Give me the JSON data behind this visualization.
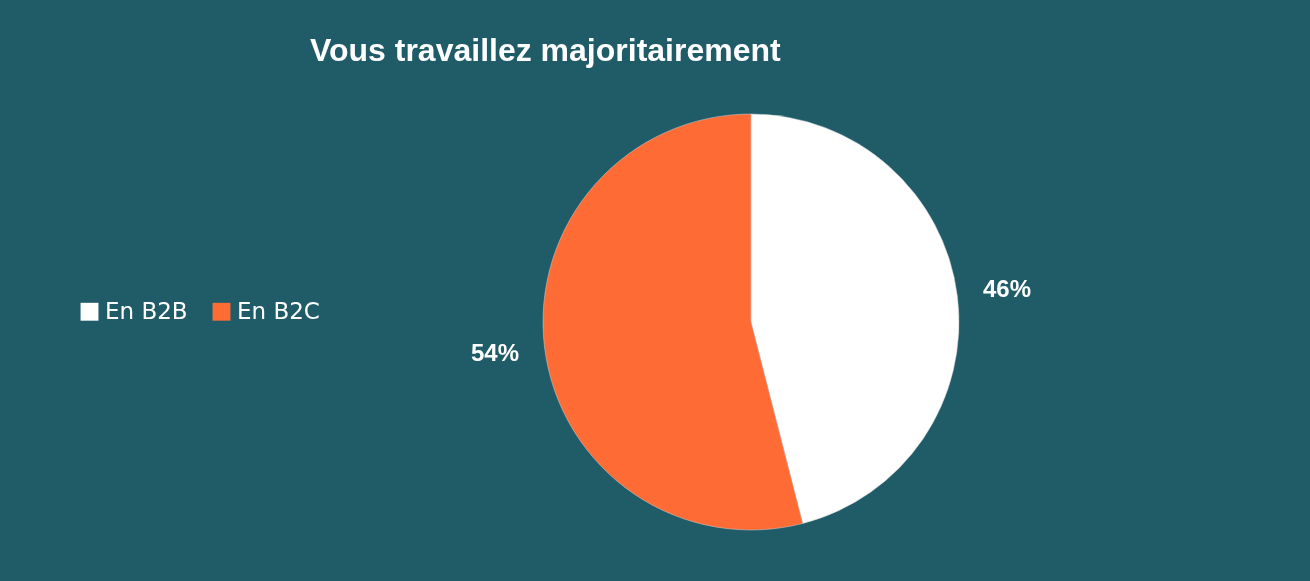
{
  "chart_data": {
    "type": "pie",
    "title": "Vous travaillez majoritairement",
    "categories": [
      "En B2B",
      "En B2C"
    ],
    "values": [
      46,
      54
    ],
    "colors": [
      "#ffffff",
      "#ff6b35"
    ],
    "value_labels": [
      "46%",
      "54%"
    ],
    "legend": "left"
  }
}
